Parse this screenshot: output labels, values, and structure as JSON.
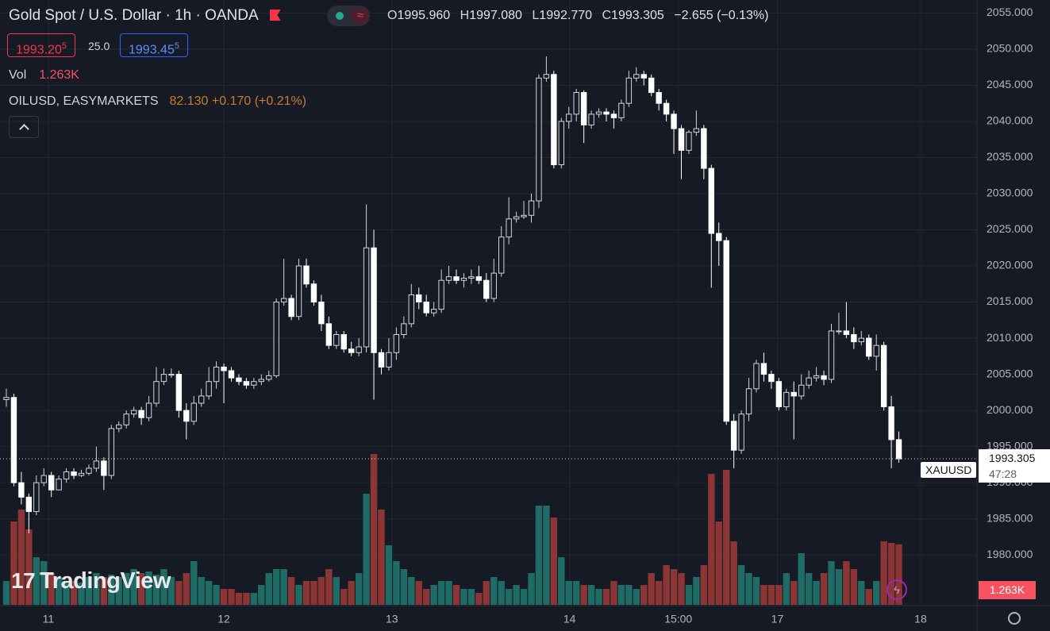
{
  "header": {
    "title": "Gold Spot / U.S. Dollar · 1h · OANDA",
    "ohlc": {
      "o_key": "O",
      "open": "1995.960",
      "h_key": "H",
      "high": "1997.080",
      "l_key": "L",
      "low": "1992.770",
      "c_key": "C",
      "close": "1993.305",
      "change": "−2.655 (−0.13%)"
    },
    "bid": {
      "main": "1993.20",
      "pip": "5"
    },
    "spread": "25.0",
    "ask": {
      "main": "1993.45",
      "pip": "5"
    },
    "vol_label": "Vol",
    "compare": {
      "name": "OILUSD, EASYMARKETS",
      "quote": "82.130 +0.170 (+0.21%)"
    },
    "logo": "TradingView",
    "symbol_tag": "XAUUSD",
    "countdown": "47:28"
  },
  "chart_data": {
    "type": "candlestick",
    "up_color": "#d1d4dc",
    "down_color": "#ffffff",
    "volume_up_color": "#1f6b66",
    "volume_down_color": "#8b3535",
    "grid": true,
    "open": [
      2001.5,
      2001.8,
      1990,
      1988,
      1986,
      1990,
      1991,
      1989,
      1990.5,
      1991.5,
      1991,
      1991.3,
      1992,
      1993,
      1991,
      1997.5,
      1998,
      1999.5,
      2000,
      1999,
      2001,
      2004,
      2005,
      2005,
      2000,
      1998.5,
      2001,
      2002,
      2004,
      2006,
      2005.5,
      2004.5,
      2004,
      2003.5,
      2004,
      2004.3,
      2004.8,
      2015,
      2015.5,
      2013,
      2020,
      2017.5,
      2015,
      2012,
      2009,
      2010.5,
      2008.5,
      2008,
      2008.8,
      2022.5,
      2008,
      2006,
      2008,
      2010.5,
      2012,
      2016,
      2015,
      2013.5,
      2014,
      2018,
      2018.5,
      2018,
      2018.3,
      2018.5,
      2018,
      2015.5,
      2019,
      2024,
      2026.5,
      2026.8,
      2027,
      2029,
      2046,
      2046.5,
      2034,
      2040,
      2041,
      2044,
      2039.5,
      2041,
      2041.3,
      2041,
      2040.5,
      2042.5,
      2046,
      2046.5,
      2046,
      2044,
      2042.5,
      2041,
      2039,
      2036,
      2038.5,
      2039,
      2033.5,
      2024.5,
      2023.5,
      1998.5,
      1994.5,
      1999.5,
      2003,
      2006.5,
      2005,
      2004,
      2000.5,
      2002.5,
      2002,
      2003.5,
      2004.5,
      2004.8,
      2004.3,
      2011,
      2011,
      2010.5,
      2009.5,
      2010,
      2007.5,
      2009,
      2000.5,
      1995.96
    ],
    "high": [
      2003,
      2002.3,
      1991.5,
      1988.5,
      1991,
      1992,
      1991.5,
      1991,
      1992,
      1992,
      1991.8,
      1992.5,
      1995,
      1993.5,
      1998,
      1998.5,
      2000,
      2000.5,
      2000.5,
      2002,
      2006,
      2005.8,
      2005.8,
      2005.5,
      2001,
      2002,
      2003,
      2006,
      2006.8,
      2006.5,
      2006,
      2005,
      2004.5,
      2004.5,
      2005,
      2005.5,
      2015.5,
      2021,
      2016,
      2021,
      2021,
      2018,
      2016,
      2013,
      2011,
      2011,
      2009.5,
      2010,
      2028.5,
      2025,
      2008.5,
      2010,
      2011.5,
      2013,
      2017.5,
      2017,
      2016,
      2015,
      2019.5,
      2020,
      2019.5,
      2019,
      2019.5,
      2020,
      2019,
      2021,
      2025.5,
      2029.5,
      2027.5,
      2029,
      2030,
      2046.5,
      2049,
      2047,
      2040.5,
      2042,
      2044.5,
      2044.3,
      2041.5,
      2041.8,
      2041.8,
      2041.5,
      2043,
      2047,
      2047.5,
      2047,
      2046.5,
      2044.5,
      2043,
      2041.5,
      2039.5,
      2038.8,
      2041.5,
      2039.5,
      2034,
      2026,
      2024,
      1999.5,
      2000,
      2004.5,
      2007,
      2008,
      2005.5,
      2004.5,
      2003,
      2004,
      2005,
      2005.5,
      2006,
      2005.5,
      2012,
      2013.5,
      2015,
      2011.5,
      2011,
      2010.5,
      2010.5,
      2009.5,
      2002,
      1997.08
    ],
    "low": [
      2000.5,
      1989.5,
      1987,
      1983,
      1985.5,
      1989.5,
      1988,
      1989,
      1990,
      1990.5,
      1990.8,
      1991,
      1991.5,
      1989,
      1990.5,
      1997,
      1997.5,
      1999,
      1998,
      1998.5,
      2000.5,
      2003.5,
      2004.5,
      1999,
      1996,
      1998,
      2000.5,
      2001.5,
      2003,
      2001,
      2004,
      2003.5,
      2003,
      2003,
      2003.5,
      2004,
      2004.5,
      2014.5,
      2012.5,
      2012.5,
      2017,
      2014.5,
      2011,
      2008.5,
      2008.5,
      2008,
      2007.5,
      2007.5,
      2008,
      2001.5,
      2005,
      2005.5,
      2007,
      2010,
      2011.5,
      2014,
      2013,
      2013,
      2013.5,
      2017.5,
      2017.5,
      2017,
      2017.5,
      2017.5,
      2015,
      2015,
      2018.5,
      2023,
      2026,
      2026.5,
      2026,
      2028,
      2045.5,
      2033.5,
      2033.5,
      2039,
      2040,
      2037,
      2039,
      2040.5,
      2040,
      2039,
      2040,
      2042,
      2045.5,
      2045,
      2043.5,
      2041.5,
      2040,
      2035.5,
      2032,
      2035.5,
      2038,
      2032,
      2017,
      2020,
      1998,
      1992,
      1994,
      1998.5,
      2002.5,
      2004,
      2003,
      2000,
      2000,
      1996,
      2001.5,
      2003,
      2004,
      2003.5,
      2003.8,
      2010.5,
      2010,
      2008.5,
      2009,
      2007,
      2005.5,
      2000,
      1992,
      1992.77
    ],
    "close": [
      2001.8,
      1990,
      1988,
      1986,
      1990,
      1991,
      1989,
      1990.5,
      1991.5,
      1991,
      1991.3,
      1992,
      1993,
      1991,
      1997.5,
      1998,
      1999.5,
      2000,
      1999,
      2001,
      2004,
      2005,
      2005,
      2000,
      1998.5,
      2001,
      2002,
      2004,
      2006,
      2005.5,
      2004.5,
      2004,
      2003.5,
      2004,
      2004.3,
      2004.8,
      2015,
      2015.5,
      2013,
      2020,
      2017.5,
      2015,
      2012,
      2009,
      2010.5,
      2008.5,
      2008,
      2008.8,
      2022.5,
      2008,
      2006,
      2008,
      2010.5,
      2012,
      2016,
      2015,
      2013.5,
      2014,
      2018,
      2018.5,
      2018,
      2018.3,
      2018.5,
      2018,
      2015.5,
      2019,
      2024,
      2026.5,
      2026.8,
      2027,
      2029,
      2046,
      2046.5,
      2034,
      2040,
      2041,
      2044,
      2039.5,
      2041,
      2041.3,
      2041,
      2040.5,
      2042.5,
      2046,
      2046.5,
      2046,
      2044,
      2042.5,
      2041,
      2039,
      2036,
      2038.5,
      2039,
      2033.5,
      2024.5,
      2023.5,
      1998.5,
      1994.5,
      1999.5,
      2003,
      2006.5,
      2005,
      2004,
      2000.5,
      2002.5,
      2002,
      2003.5,
      2004.5,
      2004.8,
      2004.3,
      2011,
      2011,
      2010.5,
      2009.5,
      2010,
      2007.5,
      2009,
      2000.5,
      1995.96,
      1993.305
    ],
    "value_labels": {
      "close": {
        "119": "1993.305"
      }
    },
    "volume": [
      498,
      1743,
      1992,
      1577,
      996,
      913,
      664,
      581,
      498,
      498,
      465,
      581,
      664,
      581,
      631,
      581,
      664,
      747,
      664,
      697,
      631,
      747,
      581,
      498,
      664,
      913,
      581,
      498,
      415,
      332,
      332,
      249,
      249,
      249,
      415,
      664,
      747,
      747,
      581,
      415,
      498,
      498,
      581,
      747,
      581,
      332,
      498,
      664,
      2324,
      3154,
      1992,
      1245,
      913,
      747,
      581,
      498,
      332,
      415,
      498,
      498,
      415,
      332,
      332,
      249,
      498,
      581,
      498,
      332,
      415,
      332,
      664,
      2075,
      2075,
      1826,
      996,
      498,
      498,
      415,
      415,
      332,
      332,
      498,
      415,
      415,
      332,
      415,
      664,
      498,
      830,
      747,
      664,
      415,
      581,
      830,
      2739,
      1743,
      2822,
      1328,
      830,
      664,
      581,
      415,
      415,
      415,
      664,
      498,
      1079,
      664,
      498,
      664,
      913,
      747,
      913,
      747,
      498,
      332,
      498,
      1328,
      1295,
      1263
    ],
    "volume_value_labels": {
      "119": "1.263K"
    },
    "ylim": [
      1973.1,
      2056.8
    ],
    "yticks": [
      {
        "value": 1980,
        "label": "1980.000"
      },
      {
        "value": 1985,
        "label": "1985.000"
      },
      {
        "value": 1990,
        "label": "1990.000"
      },
      {
        "value": 1995,
        "label": "1995.000"
      },
      {
        "value": 2000,
        "label": "2000.000"
      },
      {
        "value": 2005,
        "label": "2005.000"
      },
      {
        "value": 2010,
        "label": "2010.000"
      },
      {
        "value": 2015,
        "label": "2015.000"
      },
      {
        "value": 2020,
        "label": "2020.000"
      },
      {
        "value": 2025,
        "label": "2025.000"
      },
      {
        "value": 2030,
        "label": "2030.000"
      },
      {
        "value": 2035,
        "label": "2035.000"
      },
      {
        "value": 2040,
        "label": "2040.000"
      },
      {
        "value": 2045,
        "label": "2045.000"
      },
      {
        "value": 2050,
        "label": "2050.000"
      },
      {
        "value": 2055,
        "label": "2055.000"
      }
    ],
    "xticks": [
      {
        "value": 5.6,
        "label": "11"
      },
      {
        "value": 29,
        "label": "12"
      },
      {
        "value": 51.4,
        "label": "13"
      },
      {
        "value": 75.1,
        "label": "14"
      },
      {
        "value": 89.6,
        "label": "15:00"
      },
      {
        "value": 102.8,
        "label": "17"
      },
      {
        "value": 121.9,
        "label": "18"
      }
    ]
  }
}
